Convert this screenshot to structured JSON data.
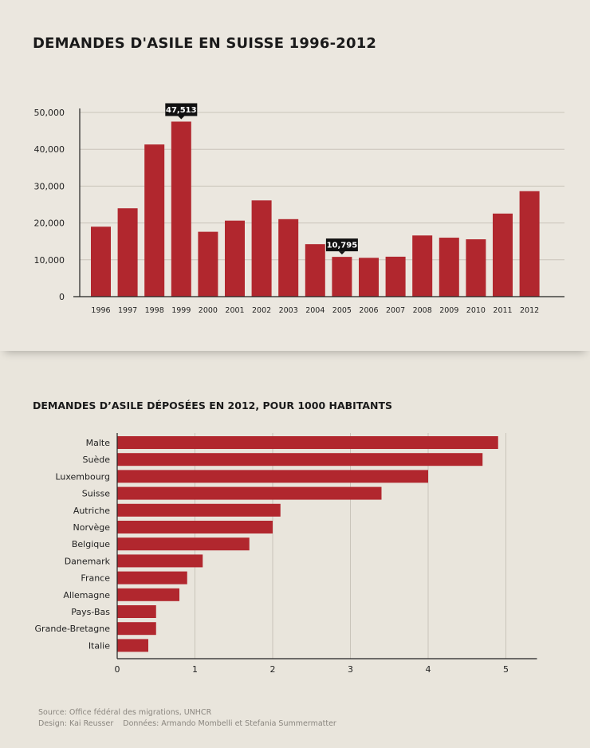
{
  "title": "DEMANDES D'ASILE EN SUISSE 1996-2012",
  "subtitle": "DEMANDES D’ASILE DÉPOSÉES EN 2012, POUR 1000 HABITANTS",
  "colors": {
    "bar": "#b1272e",
    "axis": "#222222",
    "grid": "#c9c4ba",
    "callout": "#111111"
  },
  "chart_data": [
    {
      "type": "bar",
      "title": "DEMANDES D'ASILE EN SUISSE 1996-2012",
      "categories": [
        "1996",
        "1997",
        "1998",
        "1999",
        "2000",
        "2001",
        "2002",
        "2003",
        "2004",
        "2005",
        "2006",
        "2007",
        "2008",
        "2009",
        "2010",
        "2011",
        "2012"
      ],
      "values": [
        18986,
        23982,
        41302,
        47513,
        17611,
        20633,
        26125,
        21037,
        14248,
        10795,
        10537,
        10844,
        16606,
        16005,
        15567,
        22551,
        28631
      ],
      "yticks": [
        "0",
        "10,000",
        "20,000",
        "30,000",
        "40,000",
        "50,000"
      ],
      "ylim": [
        0,
        50000
      ],
      "grid": true,
      "callouts": [
        {
          "category": "1999",
          "label": "47,513"
        },
        {
          "category": "2005",
          "label": "10,795"
        }
      ]
    },
    {
      "type": "bar",
      "orientation": "horizontal",
      "title": "DEMANDES D’ASILE DÉPOSÉES EN 2012, POUR 1000 HABITANTS",
      "categories": [
        "Malte",
        "Suède",
        "Luxembourg",
        "Suisse",
        "Autriche",
        "Norvège",
        "Belgique",
        "Danemark",
        "France",
        "Allemagne",
        "Pays-Bas",
        "Grande-Bretagne",
        "Italie"
      ],
      "values": [
        4.9,
        4.7,
        4.0,
        3.4,
        2.1,
        2.0,
        1.7,
        1.1,
        0.9,
        0.8,
        0.5,
        0.5,
        0.4
      ],
      "xticks": [
        "0",
        "1",
        "2",
        "3",
        "4",
        "5"
      ],
      "xlim": [
        0,
        5.4
      ],
      "grid": true
    }
  ],
  "footer": {
    "source": "Source: Office fédéral des migrations, UNHCR",
    "design": "Design:  Kai Reusser",
    "data": "Données: Armando Mombelli et Stefania Summermatter"
  }
}
